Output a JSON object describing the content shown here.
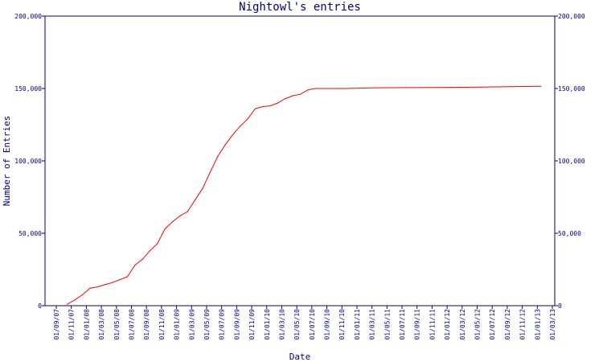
{
  "chart_data": {
    "type": "line",
    "title": "Nightowl's entries",
    "xlabel": "Date",
    "ylabel": "Number of Entries",
    "ylim": [
      0,
      200000
    ],
    "yticks": [
      0,
      50000,
      100000,
      150000,
      200000
    ],
    "ytick_labels": [
      "0",
      "50,000",
      "100,000",
      "150,000",
      "200,000"
    ],
    "x_tick_labels": [
      "01/09/07",
      "01/11/07",
      "01/01/08",
      "01/03/08",
      "01/05/08",
      "01/07/08",
      "01/09/08",
      "01/11/08",
      "01/01/09",
      "01/03/09",
      "01/05/09",
      "01/07/09",
      "01/09/09",
      "01/11/09",
      "01/01/10",
      "01/03/10",
      "01/05/10",
      "01/07/10",
      "01/09/10",
      "01/11/10",
      "01/01/11",
      "01/03/11",
      "01/05/11",
      "01/07/11",
      "01/09/11",
      "01/11/11",
      "01/01/12",
      "01/03/12",
      "01/05/12",
      "01/07/12",
      "01/09/12",
      "01/11/12",
      "01/01/13",
      "01/03/13"
    ],
    "grid": false,
    "line_color": "#ff0000",
    "axis_color": "#000080",
    "series": [
      {
        "x": [
          "2007-10-15",
          "2007-11-15",
          "2007-12-15",
          "2008-01-15",
          "2008-02-15",
          "2008-03-15",
          "2008-04-15",
          "2008-05-15",
          "2008-06-15",
          "2008-07-15",
          "2008-08-15",
          "2008-09-15",
          "2008-10-15",
          "2008-11-15",
          "2008-12-15",
          "2009-01-15",
          "2009-02-15",
          "2009-03-15",
          "2009-04-15",
          "2009-05-15",
          "2009-06-15",
          "2009-07-15",
          "2009-08-15",
          "2009-09-15",
          "2009-10-15",
          "2009-11-15",
          "2009-12-15",
          "2010-01-15",
          "2010-02-15",
          "2010-03-15",
          "2010-04-15",
          "2010-05-15",
          "2010-06-15",
          "2010-07-15",
          "2010-08-15",
          "2010-09-15",
          "2010-10-15",
          "2010-11-15",
          "2011-03-15",
          "2011-07-15",
          "2012-01-15",
          "2012-05-15",
          "2012-09-15",
          "2013-01-15"
        ],
        "values": [
          1000,
          4000,
          7500,
          12000,
          13000,
          14500,
          16000,
          18000,
          20000,
          28000,
          32000,
          38000,
          43000,
          53000,
          58000,
          62000,
          65000,
          73000,
          81000,
          92000,
          103000,
          111000,
          118000,
          124000,
          129000,
          136000,
          137500,
          138000,
          140000,
          143000,
          145000,
          146000,
          149000,
          150000,
          150000,
          150000,
          150000,
          150000,
          150500,
          150600,
          150800,
          151000,
          151200,
          151500
        ]
      }
    ]
  }
}
